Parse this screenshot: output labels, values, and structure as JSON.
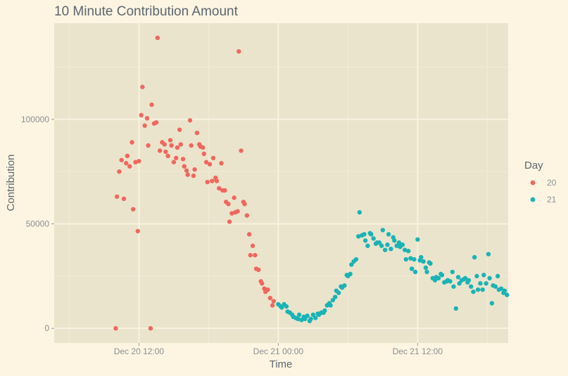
{
  "colors": {
    "background": "#fdf5e2",
    "panel": "#ebe4cc",
    "grid_major": "#f8f2e0",
    "grid_minor": "#f2ebd6",
    "series_20": "#f0675d",
    "series_21": "#1ab3b6"
  },
  "chart_data": {
    "type": "scatter",
    "title": "10 Minute Contribution Amount",
    "xlabel": "Time",
    "ylabel": "Contribution",
    "x_unit": "hours since Dec 20 00:00",
    "xlim": [
      4.7,
      43.8
    ],
    "ylim": [
      -7000,
      146000
    ],
    "x_ticks": [
      {
        "value": 12,
        "label": "Dec 20 12:00"
      },
      {
        "value": 24,
        "label": "Dec 21 00:00"
      },
      {
        "value": 36,
        "label": "Dec 21 12:00"
      }
    ],
    "y_ticks": [
      {
        "value": 0,
        "label": "0"
      },
      {
        "value": 50000,
        "label": "50000"
      },
      {
        "value": 100000,
        "label": "100000"
      }
    ],
    "grid": true,
    "legend": {
      "title": "Day",
      "position": "right"
    },
    "series": [
      {
        "name": "20",
        "color": "#f0675d",
        "points": [
          [
            10.0,
            0
          ],
          [
            10.1,
            63000
          ],
          [
            10.3,
            75000
          ],
          [
            10.5,
            80500
          ],
          [
            10.7,
            62000
          ],
          [
            10.9,
            79000
          ],
          [
            11.0,
            82500
          ],
          [
            11.2,
            77500
          ],
          [
            11.4,
            89000
          ],
          [
            11.5,
            57000
          ],
          [
            11.7,
            79500
          ],
          [
            11.9,
            46500
          ],
          [
            12.0,
            80000
          ],
          [
            12.2,
            102000
          ],
          [
            12.3,
            115500
          ],
          [
            12.5,
            97000
          ],
          [
            12.7,
            100500
          ],
          [
            12.8,
            87500
          ],
          [
            13.0,
            0
          ],
          [
            13.1,
            107000
          ],
          [
            13.3,
            98000
          ],
          [
            13.5,
            98500
          ],
          [
            13.6,
            139000
          ],
          [
            13.8,
            85000
          ],
          [
            14.0,
            89000
          ],
          [
            14.2,
            88000
          ],
          [
            14.3,
            84500
          ],
          [
            14.5,
            82500
          ],
          [
            14.7,
            90000
          ],
          [
            14.8,
            87500
          ],
          [
            15.0,
            79500
          ],
          [
            15.2,
            81500
          ],
          [
            15.3,
            86500
          ],
          [
            15.5,
            95000
          ],
          [
            15.6,
            88000
          ],
          [
            15.8,
            81000
          ],
          [
            15.9,
            77500
          ],
          [
            16.1,
            75500
          ],
          [
            16.2,
            73500
          ],
          [
            16.4,
            99500
          ],
          [
            16.5,
            87500
          ],
          [
            16.7,
            73000
          ],
          [
            16.8,
            76000
          ],
          [
            17.0,
            93500
          ],
          [
            17.2,
            88000
          ],
          [
            17.3,
            87000
          ],
          [
            17.5,
            86500
          ],
          [
            17.6,
            83500
          ],
          [
            17.8,
            79500
          ],
          [
            17.9,
            70000
          ],
          [
            18.1,
            78500
          ],
          [
            18.3,
            70500
          ],
          [
            18.4,
            81500
          ],
          [
            18.6,
            72000
          ],
          [
            18.7,
            70500
          ],
          [
            18.9,
            67000
          ],
          [
            19.1,
            79000
          ],
          [
            19.2,
            66000
          ],
          [
            19.4,
            66000
          ],
          [
            19.5,
            60500
          ],
          [
            19.7,
            59500
          ],
          [
            19.8,
            51000
          ],
          [
            20.0,
            55000
          ],
          [
            20.2,
            62500
          ],
          [
            20.3,
            55500
          ],
          [
            20.5,
            56000
          ],
          [
            20.6,
            132500
          ],
          [
            20.8,
            85000
          ],
          [
            21.0,
            60500
          ],
          [
            21.1,
            59500
          ],
          [
            21.3,
            54000
          ],
          [
            21.5,
            45000
          ],
          [
            21.6,
            35000
          ],
          [
            21.8,
            39500
          ],
          [
            22.0,
            35000
          ],
          [
            22.1,
            28500
          ],
          [
            22.3,
            28000
          ],
          [
            22.5,
            22500
          ],
          [
            22.6,
            21500
          ],
          [
            22.8,
            19000
          ],
          [
            22.9,
            17500
          ],
          [
            23.1,
            18500
          ],
          [
            23.3,
            14500
          ],
          [
            23.5,
            11000
          ],
          [
            23.6,
            13000
          ]
        ]
      },
      {
        "name": "21",
        "color": "#1ab3b6",
        "points": [
          [
            24.0,
            11500
          ],
          [
            24.2,
            10500
          ],
          [
            24.3,
            10000
          ],
          [
            24.5,
            11500
          ],
          [
            24.7,
            10500
          ],
          [
            24.8,
            8000
          ],
          [
            25.0,
            7500
          ],
          [
            25.2,
            6500
          ],
          [
            25.3,
            5500
          ],
          [
            25.5,
            5000
          ],
          [
            25.7,
            4500
          ],
          [
            25.8,
            6500
          ],
          [
            26.0,
            4000
          ],
          [
            26.2,
            5500
          ],
          [
            26.3,
            4500
          ],
          [
            26.5,
            6000
          ],
          [
            26.7,
            3500
          ],
          [
            26.8,
            4500
          ],
          [
            27.0,
            6500
          ],
          [
            27.2,
            5000
          ],
          [
            27.4,
            7000
          ],
          [
            27.5,
            6500
          ],
          [
            27.7,
            7500
          ],
          [
            27.9,
            7500
          ],
          [
            28.0,
            8500
          ],
          [
            28.2,
            11000
          ],
          [
            28.4,
            12000
          ],
          [
            28.5,
            11000
          ],
          [
            28.7,
            13500
          ],
          [
            28.9,
            15000
          ],
          [
            29.0,
            18000
          ],
          [
            29.2,
            17000
          ],
          [
            29.4,
            20000
          ],
          [
            29.5,
            19500
          ],
          [
            29.7,
            20500
          ],
          [
            29.9,
            25500
          ],
          [
            30.0,
            25000
          ],
          [
            30.2,
            26000
          ],
          [
            30.3,
            30500
          ],
          [
            30.5,
            32000
          ],
          [
            30.7,
            33000
          ],
          [
            30.9,
            44000
          ],
          [
            31.0,
            55500
          ],
          [
            31.2,
            44500
          ],
          [
            31.4,
            45000
          ],
          [
            31.5,
            42000
          ],
          [
            31.7,
            39500
          ],
          [
            31.9,
            45500
          ],
          [
            32.0,
            45000
          ],
          [
            32.2,
            43000
          ],
          [
            32.4,
            40500
          ],
          [
            32.5,
            41000
          ],
          [
            32.7,
            41000
          ],
          [
            32.9,
            39500
          ],
          [
            33.0,
            47000
          ],
          [
            33.2,
            37500
          ],
          [
            33.4,
            40000
          ],
          [
            33.5,
            45000
          ],
          [
            33.7,
            38000
          ],
          [
            33.9,
            43500
          ],
          [
            34.0,
            42000
          ],
          [
            34.2,
            39500
          ],
          [
            34.4,
            41000
          ],
          [
            34.5,
            39000
          ],
          [
            34.7,
            40000
          ],
          [
            34.9,
            37500
          ],
          [
            35.0,
            33000
          ],
          [
            35.2,
            37000
          ],
          [
            35.4,
            33500
          ],
          [
            35.5,
            28500
          ],
          [
            35.7,
            33000
          ],
          [
            35.8,
            27000
          ],
          [
            36.0,
            42500
          ],
          [
            36.2,
            32500
          ],
          [
            36.3,
            34000
          ],
          [
            36.5,
            32000
          ],
          [
            36.7,
            29000
          ],
          [
            36.8,
            27000
          ],
          [
            37.0,
            31500
          ],
          [
            37.1,
            31000
          ],
          [
            37.3,
            24000
          ],
          [
            37.5,
            23000
          ],
          [
            37.6,
            24500
          ],
          [
            37.8,
            24000
          ],
          [
            38.0,
            26000
          ],
          [
            38.1,
            25500
          ],
          [
            38.3,
            22000
          ],
          [
            38.5,
            22500
          ],
          [
            38.6,
            23000
          ],
          [
            38.8,
            22500
          ],
          [
            39.0,
            27000
          ],
          [
            39.1,
            20000
          ],
          [
            39.3,
            9500
          ],
          [
            39.5,
            24500
          ],
          [
            39.6,
            21500
          ],
          [
            39.8,
            23000
          ],
          [
            40.0,
            23500
          ],
          [
            40.1,
            24000
          ],
          [
            40.3,
            22000
          ],
          [
            40.4,
            23000
          ],
          [
            40.6,
            20000
          ],
          [
            40.8,
            17500
          ],
          [
            40.9,
            34000
          ],
          [
            41.1,
            25000
          ],
          [
            41.2,
            18500
          ],
          [
            41.4,
            21500
          ],
          [
            41.6,
            18500
          ],
          [
            41.7,
            25500
          ],
          [
            41.9,
            21500
          ],
          [
            42.1,
            35500
          ],
          [
            42.2,
            24000
          ],
          [
            42.4,
            12000
          ],
          [
            42.5,
            20500
          ],
          [
            42.7,
            20000
          ],
          [
            42.9,
            25000
          ],
          [
            43.0,
            18500
          ],
          [
            43.2,
            19000
          ],
          [
            43.4,
            17000
          ],
          [
            43.5,
            18000
          ],
          [
            43.7,
            16000
          ]
        ]
      }
    ]
  }
}
